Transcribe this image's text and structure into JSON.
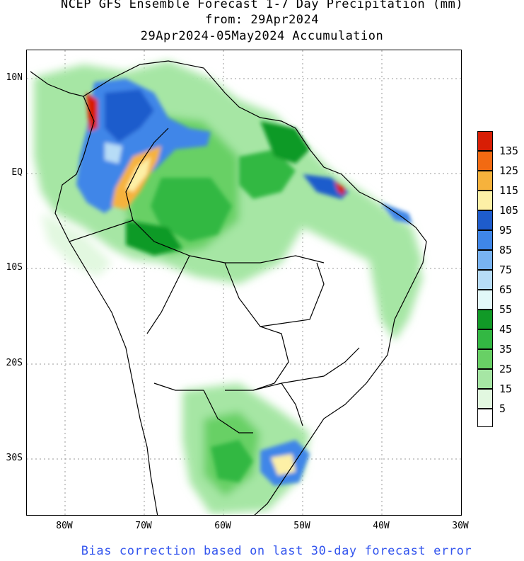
{
  "title": {
    "line1": "NCEP GFS Ensemble Forecast 1-7 Day Precipitation (mm)",
    "line2": "from: 29Apr2024",
    "line3": "29Apr2024-05May2024 Accumulation"
  },
  "footer": "Bias correction based on last 30-day forecast error",
  "axes": {
    "lat_labels": [
      "10N",
      "EQ",
      "10S",
      "20S",
      "30S"
    ],
    "lon_labels": [
      "80W",
      "70W",
      "60W",
      "50W",
      "40W",
      "30W"
    ]
  },
  "legend": {
    "labels": [
      "135",
      "125",
      "115",
      "105",
      "95",
      "85",
      "75",
      "65",
      "55",
      "45",
      "35",
      "25",
      "15",
      "5"
    ],
    "colors": [
      "#d81e05",
      "#f26a12",
      "#f6b23c",
      "#fdf0a6",
      "#1e5ccc",
      "#3f86e8",
      "#78b3f2",
      "#b7dcf6",
      "#e2f8f8",
      "#119a27",
      "#33b843",
      "#68d065",
      "#a6e6a4",
      "#e2f8e0",
      "#ffffff"
    ]
  }
}
